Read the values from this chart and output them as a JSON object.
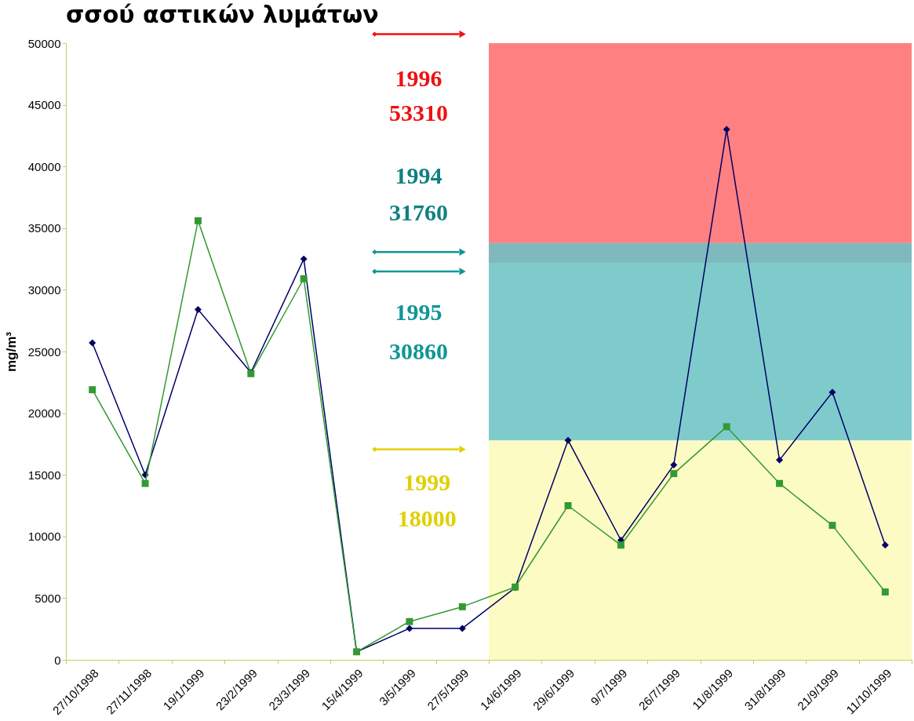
{
  "chart_data": {
    "type": "line",
    "title": "σσού αστικών λυμάτων",
    "ylabel": "mg/m³",
    "categories": [
      "27/10/1998",
      "27/11/1998",
      "19/1/1999",
      "23/2/1999",
      "23/3/1999",
      "15/4/1999",
      "3/5/1999",
      "27/5/1999",
      "14/6/1999",
      "29/6/1999",
      "9/7/1999",
      "26/7/1999",
      "11/8/1999",
      "31/8/1999",
      "21/9/1999",
      "11/10/1999"
    ],
    "series": [
      {
        "color": "#000066",
        "marker": "diamond",
        "values": [
          25700,
          15000,
          28400,
          23300,
          32500,
          650,
          2550,
          2550,
          5850,
          17800,
          9700,
          15800,
          43000,
          16200,
          21700,
          9300
        ]
      },
      {
        "color": "#339933",
        "marker": "square",
        "values": [
          21900,
          14300,
          35600,
          23200,
          30900,
          650,
          3100,
          4300,
          5900,
          12500,
          9300,
          15100,
          18900,
          14300,
          10900,
          5500
        ]
      }
    ],
    "ylim": [
      0,
      50000
    ],
    "yticks": [
      0,
      5000,
      10000,
      15000,
      20000,
      25000,
      30000,
      35000,
      40000,
      45000,
      50000
    ],
    "grid": false,
    "legend": false,
    "bands": [
      {
        "axis": "y",
        "from": 0,
        "to": 17800,
        "color": "#fdfbc4"
      },
      {
        "axis": "y",
        "from": 17800,
        "to": 33800,
        "color": "#7fcbcb"
      },
      {
        "axis": "y",
        "from": 32200,
        "to": 33800,
        "color": "#7fb9bd"
      },
      {
        "axis": "y",
        "from": 33800,
        "to": 50000,
        "color": "#ff8080"
      }
    ],
    "annotations": [
      "1996\n53310",
      "1994\n31760",
      "1995\n30860",
      "1999\n18000"
    ]
  }
}
